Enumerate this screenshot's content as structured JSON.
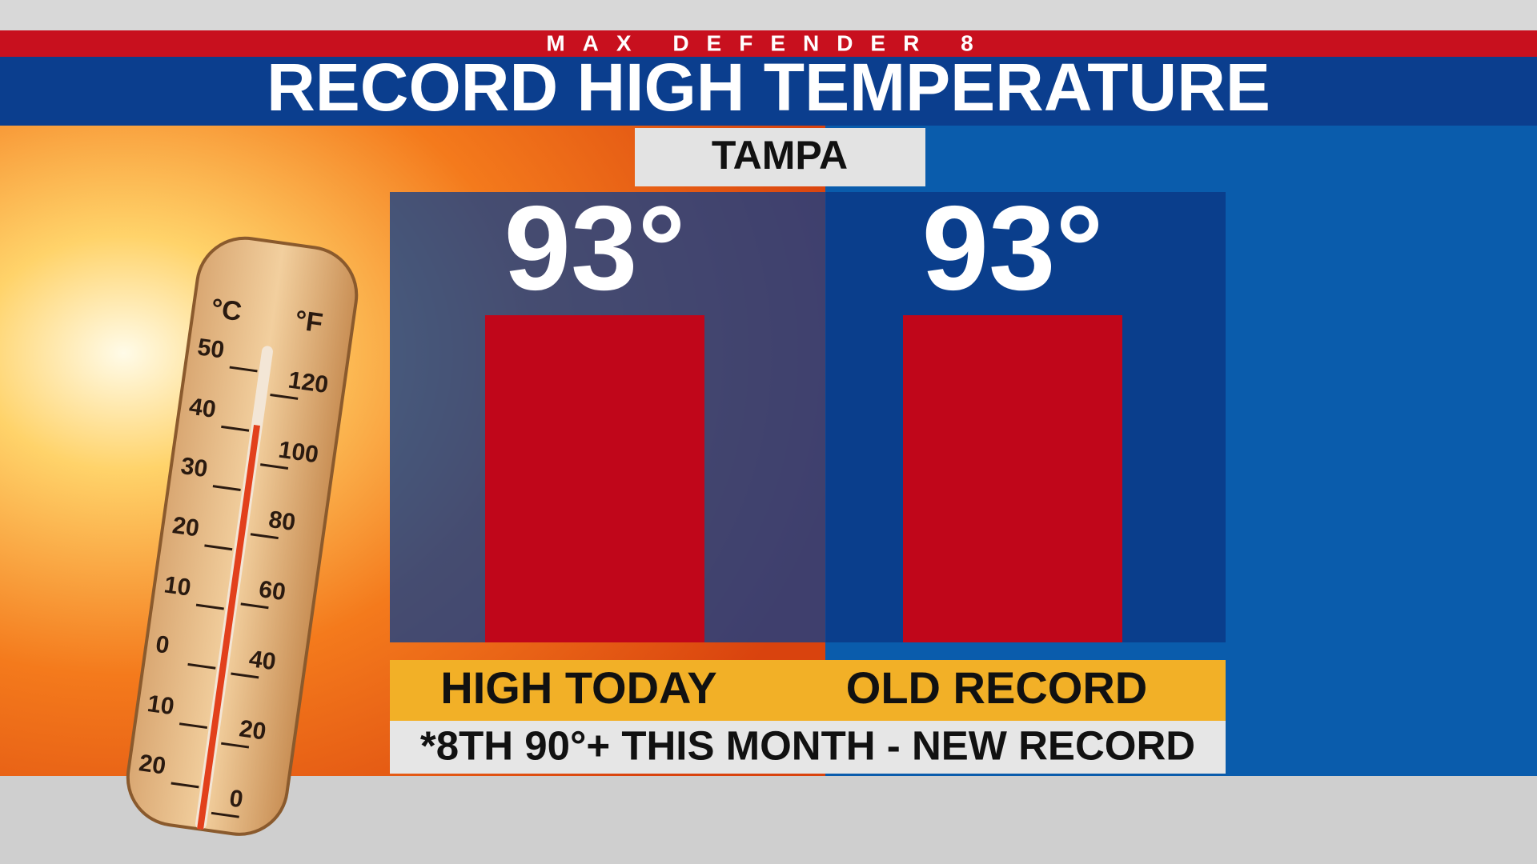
{
  "header": {
    "brand": "MAX DEFENDER 8"
  },
  "thermometer": {
    "celsius_unit": "°C",
    "fahrenheit_unit": "°F",
    "celsius_labels": [
      "50",
      "40",
      "30",
      "20",
      "10",
      "0",
      "10",
      "20"
    ],
    "fahrenheit_labels": [
      "120",
      "100",
      "80",
      "60",
      "40",
      "20",
      "0"
    ]
  },
  "chart_data": {
    "type": "bar",
    "title": "RECORD HIGH TEMPERATURE",
    "subtitle": "TAMPA",
    "categories": [
      "HIGH TODAY",
      "OLD RECORD"
    ],
    "values": [
      93,
      93
    ],
    "value_labels": [
      "93°",
      "93°"
    ],
    "color": "#c0061a",
    "annotation": "*8TH 90°+ THIS MONTH - NEW RECORD"
  }
}
